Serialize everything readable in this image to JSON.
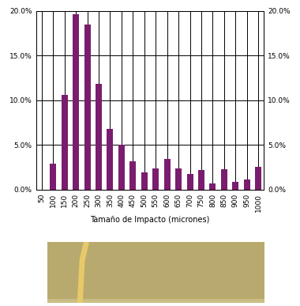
{
  "chart_data": {
    "type": "bar",
    "x_label": "Tamaño de Impacto (micrones)",
    "categories": [
      "50",
      "100",
      "150",
      "200",
      "250",
      "300",
      "350",
      "400",
      "450",
      "500",
      "550",
      "600",
      "650",
      "700",
      "750",
      "800",
      "850",
      "900",
      "950",
      "1000"
    ],
    "values": [
      0,
      2.9,
      10.6,
      19.6,
      18.5,
      11.8,
      6.8,
      5.0,
      3.2,
      1.9,
      2.4,
      3.4,
      2.4,
      1.8,
      2.2,
      0.7,
      2.3,
      0.9,
      1.1,
      2.6
    ],
    "color": "#7a1d6e",
    "ylim": [
      0,
      20
    ],
    "yticks": [
      {
        "value": 0,
        "label": "0.0%"
      },
      {
        "value": 5,
        "label": "5.0%"
      },
      {
        "value": 10,
        "label": "10.0%"
      },
      {
        "value": 15,
        "label": "15.0%"
      },
      {
        "value": 20,
        "label": "20.0%"
      }
    ],
    "y2lim": [
      0,
      20
    ],
    "y2ticks": [
      {
        "value": 0,
        "label": "0.0%"
      },
      {
        "value": 5,
        "label": "5.0%"
      },
      {
        "value": 10,
        "label": "10.0%"
      },
      {
        "value": 15,
        "label": "15.0%"
      },
      {
        "value": 20,
        "label": "20.0%"
      }
    ],
    "grid": true
  }
}
